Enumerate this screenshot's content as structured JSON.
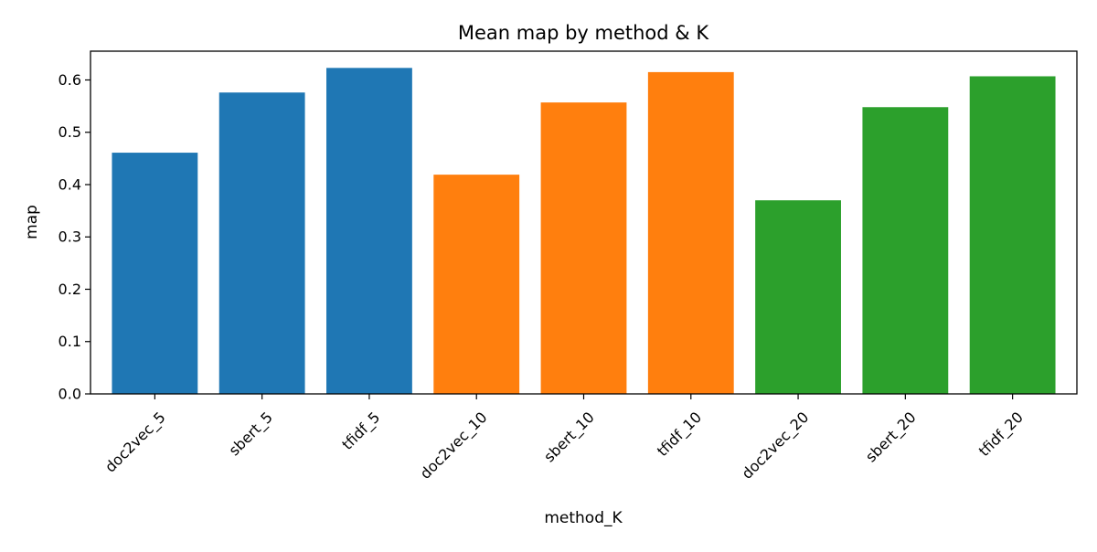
{
  "chart_data": {
    "type": "bar",
    "title": "Mean map by method & K",
    "xlabel": "method_K",
    "ylabel": "map",
    "ylim": [
      0,
      0.655
    ],
    "yticks": [
      "0.0",
      "0.1",
      "0.2",
      "0.3",
      "0.4",
      "0.5",
      "0.6"
    ],
    "grid": false,
    "categories": [
      "doc2vec_5",
      "sbert_5",
      "tfidf_5",
      "doc2vec_10",
      "sbert_10",
      "tfidf_10",
      "doc2vec_20",
      "sbert_20",
      "tfidf_20"
    ],
    "values": [
      0.461,
      0.576,
      0.623,
      0.419,
      0.557,
      0.615,
      0.37,
      0.548,
      0.607
    ],
    "group_by_K": [
      "5",
      "5",
      "5",
      "10",
      "10",
      "10",
      "20",
      "20",
      "20"
    ],
    "colors": {
      "5": "#1f77b4",
      "10": "#ff7f0e",
      "20": "#2ca02c"
    }
  }
}
